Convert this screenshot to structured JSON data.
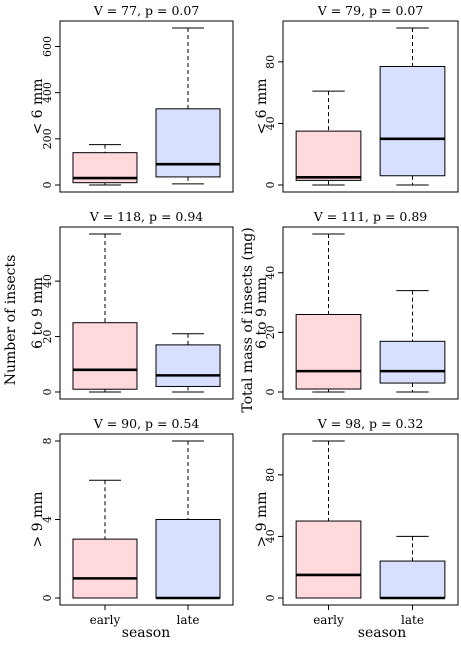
{
  "figure": {
    "row_labels": [
      "< 6 mm",
      "6 to 9 mm",
      "> 9 mm"
    ],
    "left_ylabel": "Number of insects",
    "right_ylabel": "Total mass of insects (mg)",
    "xlabel": "season",
    "categories": [
      "early",
      "late"
    ],
    "colors": {
      "early": "#ffd9dc",
      "late": "#d9dfff",
      "stroke": "#000000"
    }
  },
  "chart_data": [
    {
      "type": "boxplot",
      "title": "V = 77, p = 0.07",
      "ylabel": "< 6 mm",
      "xlabel": "",
      "categories": [
        "early",
        "late"
      ],
      "ylim": [
        0,
        680
      ],
      "yticks": [
        0,
        200,
        400,
        600
      ],
      "boxes": [
        {
          "category": "early",
          "min": 0,
          "q1": 10,
          "median": 30,
          "q3": 140,
          "max": 175
        },
        {
          "category": "late",
          "min": 5,
          "q1": 35,
          "median": 90,
          "q3": 330,
          "max": 680
        }
      ]
    },
    {
      "type": "boxplot",
      "title": "V = 79, p = 0.07",
      "ylabel": "< 6 mm",
      "xlabel": "",
      "categories": [
        "early",
        "late"
      ],
      "ylim": [
        0,
        102
      ],
      "yticks": [
        0,
        40,
        80
      ],
      "boxes": [
        {
          "category": "early",
          "min": 0,
          "q1": 3,
          "median": 5,
          "q3": 35,
          "max": 61
        },
        {
          "category": "late",
          "min": 0,
          "q1": 6,
          "median": 30,
          "q3": 77,
          "max": 102
        }
      ]
    },
    {
      "type": "boxplot",
      "title": "V = 118, p = 0.94",
      "ylabel": "6 to 9 mm",
      "xlabel": "",
      "categories": [
        "early",
        "late"
      ],
      "ylim": [
        0,
        57
      ],
      "yticks": [
        0,
        20,
        40
      ],
      "boxes": [
        {
          "category": "early",
          "min": 0,
          "q1": 1,
          "median": 8,
          "q3": 25,
          "max": 57
        },
        {
          "category": "late",
          "min": 0,
          "q1": 2,
          "median": 6,
          "q3": 17,
          "max": 21
        }
      ]
    },
    {
      "type": "boxplot",
      "title": "V = 111, p = 0.89",
      "ylabel": "6 to 9 mm",
      "xlabel": "",
      "categories": [
        "early",
        "late"
      ],
      "ylim": [
        0,
        53
      ],
      "yticks": [
        0,
        20,
        40
      ],
      "boxes": [
        {
          "category": "early",
          "min": 0,
          "q1": 1,
          "median": 7,
          "q3": 26,
          "max": 53
        },
        {
          "category": "late",
          "min": 0,
          "q1": 3,
          "median": 7,
          "q3": 17,
          "max": 34
        }
      ]
    },
    {
      "type": "boxplot",
      "title": "V = 90, p = 0.54",
      "ylabel": "> 9 mm",
      "xlabel": "season",
      "categories": [
        "early",
        "late"
      ],
      "ylim": [
        0,
        8
      ],
      "yticks": [
        0,
        4,
        8
      ],
      "boxes": [
        {
          "category": "early",
          "min": 0,
          "q1": 0,
          "median": 1,
          "q3": 3,
          "max": 6
        },
        {
          "category": "late",
          "min": 0,
          "q1": 0,
          "median": 0,
          "q3": 4,
          "max": 8
        }
      ]
    },
    {
      "type": "boxplot",
      "title": "V = 98, p = 0.32",
      "ylabel": "> 9 mm",
      "xlabel": "season",
      "categories": [
        "early",
        "late"
      ],
      "ylim": [
        0,
        102
      ],
      "yticks": [
        0,
        40,
        80
      ],
      "boxes": [
        {
          "category": "early",
          "min": 0,
          "q1": 0,
          "median": 15,
          "q3": 50,
          "max": 102
        },
        {
          "category": "late",
          "min": 0,
          "q1": 0,
          "median": 0,
          "q3": 24,
          "max": 40
        }
      ]
    }
  ]
}
